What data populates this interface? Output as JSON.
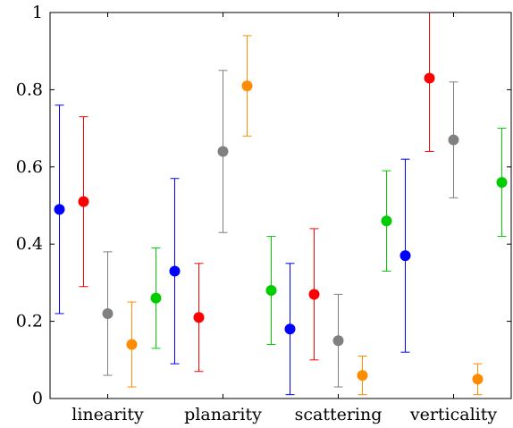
{
  "chart_data": {
    "type": "scatter",
    "categories": [
      "linearity",
      "planarity",
      "scattering",
      "verticality"
    ],
    "ylim": [
      0,
      1
    ],
    "yticks": [
      0,
      0.2,
      0.4,
      0.6,
      0.8,
      1
    ],
    "ytick_labels": [
      "0",
      "0.2",
      "0.4",
      "0.6",
      "0.8",
      "1"
    ],
    "grid": false,
    "title": "",
    "xlabel": "",
    "ylabel": "",
    "series": [
      {
        "color": "#0000ff",
        "points": [
          {
            "category": "linearity",
            "y": 0.49,
            "low": 0.22,
            "high": 0.76
          },
          {
            "category": "planarity",
            "y": 0.33,
            "low": 0.09,
            "high": 0.57
          },
          {
            "category": "scattering",
            "y": 0.18,
            "low": 0.01,
            "high": 0.35
          },
          {
            "category": "verticality",
            "y": 0.37,
            "low": 0.12,
            "high": 0.62
          }
        ]
      },
      {
        "color": "#ff0000",
        "points": [
          {
            "category": "linearity",
            "y": 0.51,
            "low": 0.29,
            "high": 0.73
          },
          {
            "category": "planarity",
            "y": 0.21,
            "low": 0.07,
            "high": 0.35
          },
          {
            "category": "scattering",
            "y": 0.27,
            "low": 0.1,
            "high": 0.44
          },
          {
            "category": "verticality",
            "y": 0.83,
            "low": 0.64,
            "high": 1.0
          }
        ]
      },
      {
        "color": "#808080",
        "points": [
          {
            "category": "linearity",
            "y": 0.22,
            "low": 0.06,
            "high": 0.38
          },
          {
            "category": "planarity",
            "y": 0.64,
            "low": 0.43,
            "high": 0.85
          },
          {
            "category": "scattering",
            "y": 0.15,
            "low": 0.03,
            "high": 0.27
          },
          {
            "category": "verticality",
            "y": 0.67,
            "low": 0.52,
            "high": 0.82
          }
        ]
      },
      {
        "color": "#ff8c00",
        "points": [
          {
            "category": "linearity",
            "y": 0.14,
            "low": 0.03,
            "high": 0.25
          },
          {
            "category": "planarity",
            "y": 0.81,
            "low": 0.68,
            "high": 0.94
          },
          {
            "category": "scattering",
            "y": 0.06,
            "low": 0.01,
            "high": 0.11
          },
          {
            "category": "verticality",
            "y": 0.05,
            "low": 0.01,
            "high": 0.09
          }
        ]
      },
      {
        "color": "#00cc00",
        "points": [
          {
            "category": "linearity",
            "y": 0.26,
            "low": 0.13,
            "high": 0.39
          },
          {
            "category": "planarity",
            "y": 0.28,
            "low": 0.14,
            "high": 0.42
          },
          {
            "category": "scattering",
            "y": 0.46,
            "low": 0.33,
            "high": 0.59
          },
          {
            "category": "verticality",
            "y": 0.56,
            "low": 0.42,
            "high": 0.7
          }
        ]
      }
    ]
  }
}
